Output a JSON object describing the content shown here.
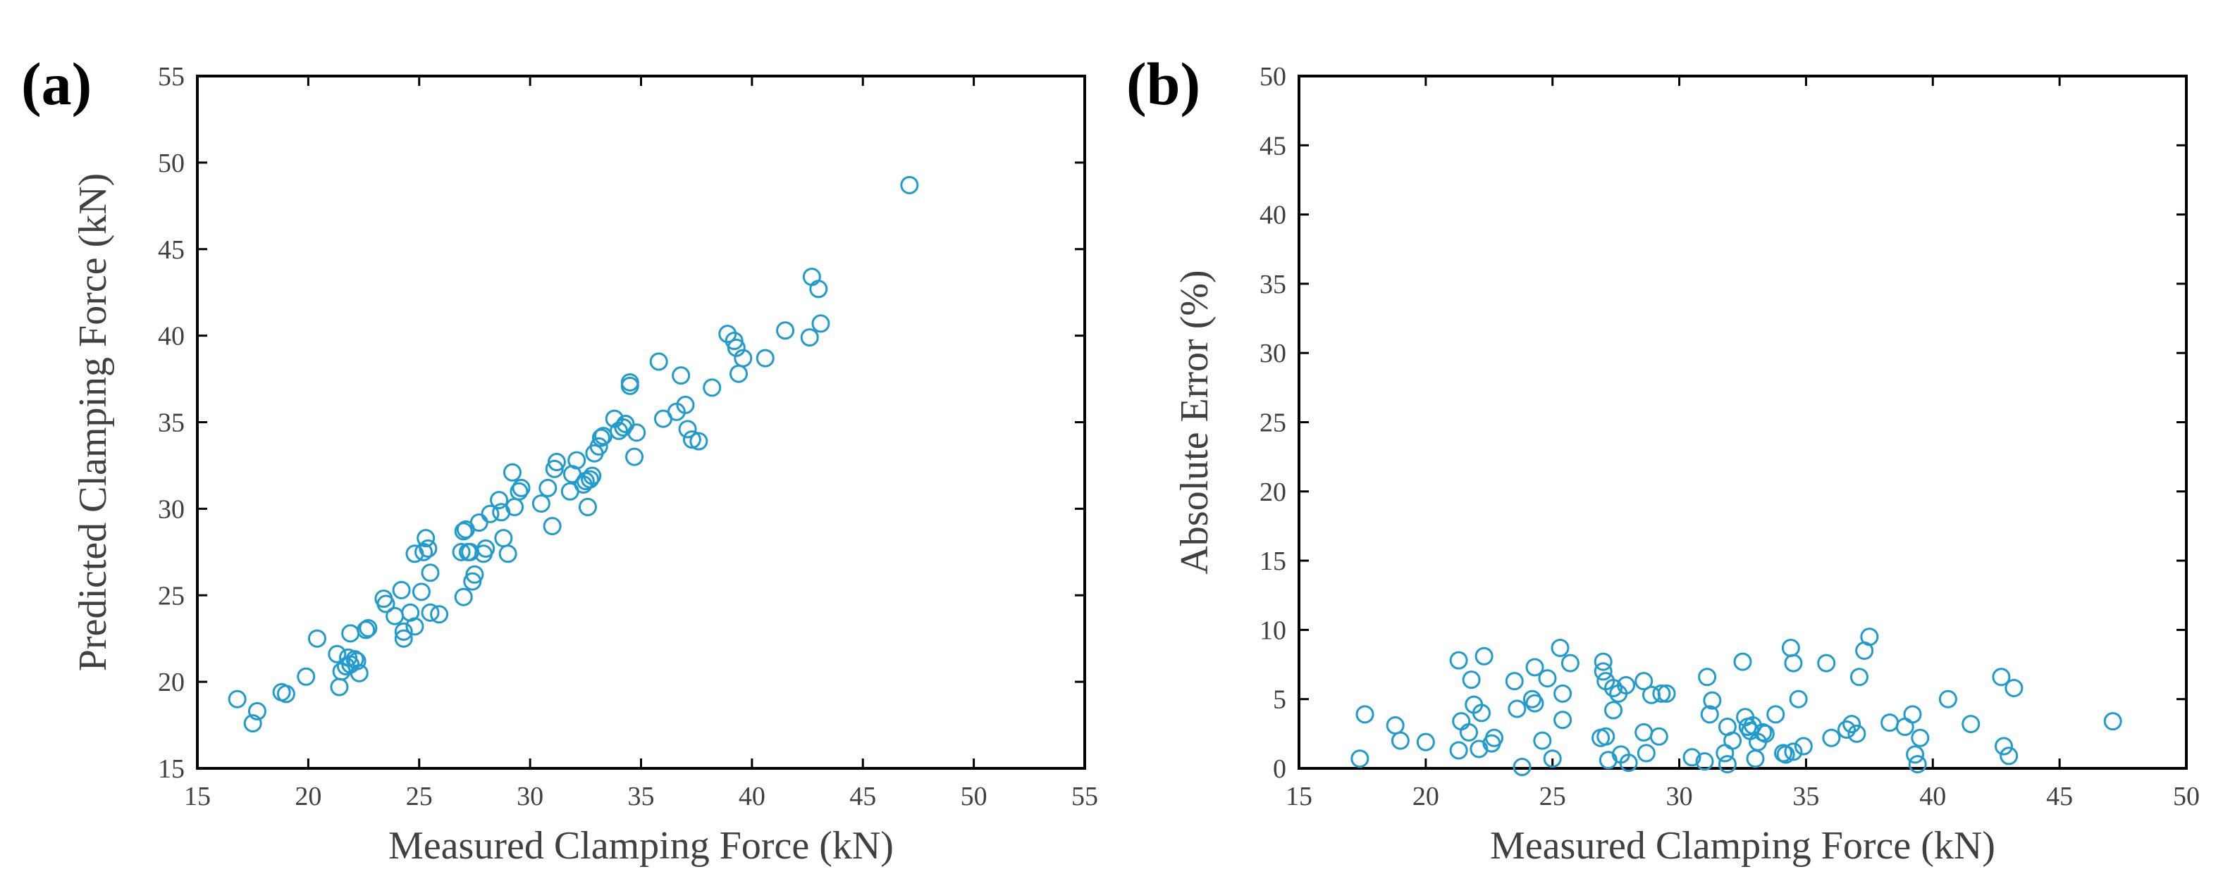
{
  "chart_data": [
    {
      "type": "scatter",
      "panel_label": "(a)",
      "title": "",
      "xlabel": "Measured Clamping Force (kN)",
      "ylabel": "Predicted Clamping Force (kN)",
      "xlim": [
        15,
        55
      ],
      "ylim": [
        15,
        55
      ],
      "xticks": [
        "15",
        "20",
        "25",
        "30",
        "35",
        "40",
        "45",
        "50",
        "55"
      ],
      "yticks": [
        "15",
        "20",
        "25",
        "30",
        "35",
        "40",
        "45",
        "50",
        "55"
      ],
      "grid": false,
      "marker": "open-circle",
      "color": "#1f9bcf",
      "points": [
        [
          16.8,
          19.0
        ],
        [
          17.5,
          17.6
        ],
        [
          17.7,
          18.3
        ],
        [
          18.8,
          19.4
        ],
        [
          19.0,
          19.3
        ],
        [
          19.9,
          20.3
        ],
        [
          20.4,
          22.5
        ],
        [
          21.3,
          21.6
        ],
        [
          21.4,
          19.7
        ],
        [
          21.5,
          20.6
        ],
        [
          21.7,
          20.9
        ],
        [
          21.8,
          21.4
        ],
        [
          21.9,
          21.0
        ],
        [
          21.9,
          22.8
        ],
        [
          22.1,
          21.3
        ],
        [
          22.2,
          21.2
        ],
        [
          22.3,
          20.5
        ],
        [
          22.6,
          23.0
        ],
        [
          22.7,
          23.1
        ],
        [
          23.4,
          24.8
        ],
        [
          23.5,
          24.5
        ],
        [
          23.9,
          23.8
        ],
        [
          24.2,
          25.3
        ],
        [
          24.3,
          22.9
        ],
        [
          24.3,
          22.5
        ],
        [
          24.6,
          24.0
        ],
        [
          24.8,
          27.4
        ],
        [
          24.8,
          23.2
        ],
        [
          25.1,
          25.2
        ],
        [
          25.2,
          27.5
        ],
        [
          25.3,
          28.3
        ],
        [
          25.4,
          27.7
        ],
        [
          25.5,
          26.3
        ],
        [
          25.5,
          24.0
        ],
        [
          25.9,
          23.9
        ],
        [
          26.9,
          27.5
        ],
        [
          27.0,
          28.7
        ],
        [
          27.1,
          28.8
        ],
        [
          27.0,
          24.9
        ],
        [
          27.2,
          27.5
        ],
        [
          27.3,
          27.5
        ],
        [
          27.4,
          25.8
        ],
        [
          27.5,
          26.2
        ],
        [
          27.7,
          29.2
        ],
        [
          27.9,
          27.4
        ],
        [
          28.0,
          27.7
        ],
        [
          28.2,
          29.7
        ],
        [
          28.6,
          30.5
        ],
        [
          28.7,
          29.8
        ],
        [
          28.8,
          28.3
        ],
        [
          29.0,
          27.4
        ],
        [
          29.2,
          32.1
        ],
        [
          29.3,
          30.1
        ],
        [
          29.5,
          31.0
        ],
        [
          29.6,
          31.2
        ],
        [
          30.5,
          30.3
        ],
        [
          30.8,
          31.2
        ],
        [
          31.0,
          29.0
        ],
        [
          31.1,
          32.3
        ],
        [
          31.2,
          32.7
        ],
        [
          31.8,
          31.0
        ],
        [
          31.9,
          32.0
        ],
        [
          32.1,
          32.8
        ],
        [
          32.4,
          31.4
        ],
        [
          32.5,
          31.6
        ],
        [
          32.6,
          30.1
        ],
        [
          32.7,
          31.7
        ],
        [
          32.8,
          31.9
        ],
        [
          32.9,
          33.2
        ],
        [
          33.1,
          33.6
        ],
        [
          33.2,
          34.1
        ],
        [
          33.3,
          34.2
        ],
        [
          33.8,
          35.2
        ],
        [
          34.0,
          34.5
        ],
        [
          34.2,
          34.7
        ],
        [
          34.3,
          34.9
        ],
        [
          34.5,
          37.3
        ],
        [
          34.5,
          37.1
        ],
        [
          34.7,
          33.0
        ],
        [
          34.8,
          34.4
        ],
        [
          35.8,
          38.5
        ],
        [
          36.0,
          35.2
        ],
        [
          36.6,
          35.6
        ],
        [
          36.8,
          37.7
        ],
        [
          37.0,
          36.0
        ],
        [
          37.1,
          34.6
        ],
        [
          37.3,
          34.0
        ],
        [
          37.6,
          33.9
        ],
        [
          38.2,
          37.0
        ],
        [
          38.9,
          40.1
        ],
        [
          39.2,
          39.7
        ],
        [
          39.3,
          39.3
        ],
        [
          39.4,
          37.8
        ],
        [
          39.6,
          38.7
        ],
        [
          40.6,
          38.7
        ],
        [
          41.5,
          40.3
        ],
        [
          42.6,
          39.9
        ],
        [
          42.7,
          43.4
        ],
        [
          43.0,
          42.7
        ],
        [
          43.1,
          40.7
        ],
        [
          47.1,
          48.7
        ]
      ]
    },
    {
      "type": "scatter",
      "panel_label": "(b)",
      "title": "",
      "xlabel": "Measured Clamping Force (kN)",
      "ylabel": "Absolute Error (%)",
      "xlim": [
        15,
        50
      ],
      "ylim": [
        0,
        50
      ],
      "xticks": [
        "15",
        "20",
        "25",
        "30",
        "35",
        "40",
        "45",
        "50"
      ],
      "yticks": [
        "0",
        "5",
        "10",
        "15",
        "20",
        "25",
        "30",
        "35",
        "40",
        "45",
        "50"
      ],
      "grid": false,
      "marker": "open-circle",
      "color": "#1f9bcf",
      "points": [
        [
          17.4,
          0.7
        ],
        [
          17.6,
          3.9
        ],
        [
          18.8,
          3.1
        ],
        [
          19.0,
          2.0
        ],
        [
          20.0,
          1.9
        ],
        [
          21.3,
          7.8
        ],
        [
          21.3,
          1.3
        ],
        [
          21.4,
          3.4
        ],
        [
          21.7,
          2.6
        ],
        [
          21.8,
          6.4
        ],
        [
          21.9,
          4.6
        ],
        [
          22.1,
          1.4
        ],
        [
          22.2,
          4.0
        ],
        [
          22.3,
          8.1
        ],
        [
          22.6,
          1.8
        ],
        [
          22.7,
          2.2
        ],
        [
          23.5,
          6.3
        ],
        [
          23.6,
          4.3
        ],
        [
          23.8,
          0.1
        ],
        [
          24.2,
          5.0
        ],
        [
          24.3,
          4.7
        ],
        [
          24.3,
          7.3
        ],
        [
          24.6,
          2.0
        ],
        [
          24.8,
          6.5
        ],
        [
          25.0,
          0.7
        ],
        [
          25.3,
          8.7
        ],
        [
          25.4,
          5.4
        ],
        [
          25.4,
          3.5
        ],
        [
          25.7,
          7.6
        ],
        [
          26.9,
          2.2
        ],
        [
          27.0,
          7.7
        ],
        [
          27.0,
          7.0
        ],
        [
          27.1,
          6.3
        ],
        [
          27.1,
          2.3
        ],
        [
          27.2,
          0.6
        ],
        [
          27.4,
          4.2
        ],
        [
          27.4,
          5.8
        ],
        [
          27.6,
          5.4
        ],
        [
          27.7,
          1.0
        ],
        [
          27.9,
          6.0
        ],
        [
          28.0,
          0.4
        ],
        [
          28.6,
          6.3
        ],
        [
          28.6,
          2.6
        ],
        [
          28.7,
          1.1
        ],
        [
          28.9,
          5.3
        ],
        [
          29.2,
          2.3
        ],
        [
          29.3,
          5.4
        ],
        [
          29.5,
          5.4
        ],
        [
          30.5,
          0.8
        ],
        [
          31.0,
          0.5
        ],
        [
          31.1,
          6.6
        ],
        [
          31.2,
          3.9
        ],
        [
          31.3,
          4.9
        ],
        [
          31.8,
          1.1
        ],
        [
          31.9,
          0.3
        ],
        [
          31.9,
          3.0
        ],
        [
          32.1,
          2.0
        ],
        [
          32.5,
          7.7
        ],
        [
          32.6,
          3.7
        ],
        [
          32.7,
          3.0
        ],
        [
          32.8,
          2.7
        ],
        [
          32.9,
          3.1
        ],
        [
          33.0,
          0.7
        ],
        [
          33.1,
          1.9
        ],
        [
          33.3,
          2.6
        ],
        [
          33.4,
          2.5
        ],
        [
          33.8,
          3.9
        ],
        [
          34.1,
          1.1
        ],
        [
          34.2,
          1.0
        ],
        [
          34.4,
          8.7
        ],
        [
          34.5,
          7.6
        ],
        [
          34.5,
          1.2
        ],
        [
          34.7,
          5.0
        ],
        [
          34.9,
          1.6
        ],
        [
          35.8,
          7.6
        ],
        [
          36.0,
          2.2
        ],
        [
          36.6,
          2.8
        ],
        [
          36.8,
          3.2
        ],
        [
          37.0,
          2.5
        ],
        [
          37.1,
          6.6
        ],
        [
          37.3,
          8.5
        ],
        [
          37.5,
          9.5
        ],
        [
          38.3,
          3.3
        ],
        [
          38.9,
          3.0
        ],
        [
          39.2,
          3.9
        ],
        [
          39.3,
          1.0
        ],
        [
          39.4,
          0.3
        ],
        [
          39.5,
          2.2
        ],
        [
          40.6,
          5.0
        ],
        [
          41.5,
          3.2
        ],
        [
          42.7,
          6.6
        ],
        [
          42.8,
          1.6
        ],
        [
          43.0,
          0.9
        ],
        [
          43.2,
          5.8
        ],
        [
          47.1,
          3.4
        ]
      ]
    }
  ]
}
